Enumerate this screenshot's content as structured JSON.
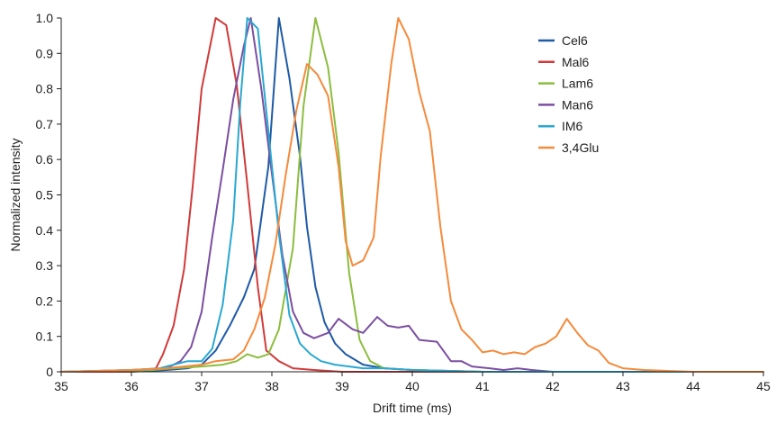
{
  "chart_data": {
    "type": "line",
    "title": "",
    "xlabel": "Drift time (ms)",
    "ylabel": "Normalized intensity",
    "xlim": [
      35,
      45
    ],
    "ylim": [
      0,
      1.0
    ],
    "x_ticks": [
      "35",
      "36",
      "37",
      "38",
      "39",
      "40",
      "41",
      "42",
      "43",
      "44",
      "45"
    ],
    "y_ticks": [
      "0",
      "0.1",
      "0.2",
      "0.3",
      "0.4",
      "0.5",
      "0.6",
      "0.7",
      "0.8",
      "0.9",
      "1.0"
    ],
    "grid": false,
    "legend_position": "top-right",
    "series": [
      {
        "name": "Cel6",
        "color": "#1f5aa6",
        "points": [
          [
            35,
            0
          ],
          [
            36,
            0
          ],
          [
            36.5,
            0.005
          ],
          [
            36.8,
            0.01
          ],
          [
            37,
            0.02
          ],
          [
            37.2,
            0.06
          ],
          [
            37.4,
            0.13
          ],
          [
            37.6,
            0.21
          ],
          [
            37.75,
            0.29
          ],
          [
            37.95,
            0.58
          ],
          [
            38.1,
            1.0
          ],
          [
            38.25,
            0.83
          ],
          [
            38.4,
            0.61
          ],
          [
            38.5,
            0.41
          ],
          [
            38.62,
            0.24
          ],
          [
            38.75,
            0.14
          ],
          [
            38.9,
            0.08
          ],
          [
            39.05,
            0.05
          ],
          [
            39.3,
            0.02
          ],
          [
            39.6,
            0.01
          ],
          [
            40,
            0.005
          ],
          [
            41,
            0
          ],
          [
            42,
            0
          ],
          [
            45,
            0
          ]
        ]
      },
      {
        "name": "Mal6",
        "color": "#d13a3a",
        "points": [
          [
            35,
            0
          ],
          [
            36,
            0
          ],
          [
            36.35,
            0.01
          ],
          [
            36.45,
            0.05
          ],
          [
            36.6,
            0.13
          ],
          [
            36.75,
            0.29
          ],
          [
            36.87,
            0.52
          ],
          [
            37,
            0.8
          ],
          [
            37.2,
            1.0
          ],
          [
            37.35,
            0.98
          ],
          [
            37.5,
            0.81
          ],
          [
            37.65,
            0.53
          ],
          [
            37.8,
            0.24
          ],
          [
            37.92,
            0.06
          ],
          [
            38.1,
            0.03
          ],
          [
            38.3,
            0.01
          ],
          [
            38.6,
            0.005
          ],
          [
            39,
            0
          ],
          [
            40,
            0
          ],
          [
            45,
            0
          ]
        ]
      },
      {
        "name": "Lam6",
        "color": "#8cbd3f",
        "points": [
          [
            35,
            0
          ],
          [
            36.3,
            0.005
          ],
          [
            36.6,
            0.01
          ],
          [
            37,
            0.015
          ],
          [
            37.3,
            0.02
          ],
          [
            37.5,
            0.03
          ],
          [
            37.65,
            0.05
          ],
          [
            37.8,
            0.04
          ],
          [
            37.95,
            0.05
          ],
          [
            38.1,
            0.12
          ],
          [
            38.3,
            0.35
          ],
          [
            38.45,
            0.75
          ],
          [
            38.62,
            1.0
          ],
          [
            38.8,
            0.86
          ],
          [
            38.95,
            0.62
          ],
          [
            39.1,
            0.28
          ],
          [
            39.25,
            0.09
          ],
          [
            39.4,
            0.03
          ],
          [
            39.6,
            0.01
          ],
          [
            40,
            0.005
          ],
          [
            41,
            0
          ],
          [
            45,
            0
          ]
        ]
      },
      {
        "name": "Man6",
        "color": "#7b4fa0",
        "points": [
          [
            35,
            0
          ],
          [
            36,
            0.005
          ],
          [
            36.5,
            0.01
          ],
          [
            36.7,
            0.03
          ],
          [
            36.85,
            0.07
          ],
          [
            37,
            0.17
          ],
          [
            37.15,
            0.38
          ],
          [
            37.3,
            0.57
          ],
          [
            37.45,
            0.77
          ],
          [
            37.6,
            0.92
          ],
          [
            37.7,
            1.0
          ],
          [
            37.85,
            0.8
          ],
          [
            38,
            0.56
          ],
          [
            38.15,
            0.33
          ],
          [
            38.3,
            0.17
          ],
          [
            38.45,
            0.11
          ],
          [
            38.6,
            0.095
          ],
          [
            38.8,
            0.11
          ],
          [
            38.95,
            0.15
          ],
          [
            39.15,
            0.12
          ],
          [
            39.3,
            0.11
          ],
          [
            39.5,
            0.155
          ],
          [
            39.65,
            0.13
          ],
          [
            39.8,
            0.125
          ],
          [
            39.95,
            0.13
          ],
          [
            40.1,
            0.09
          ],
          [
            40.35,
            0.085
          ],
          [
            40.55,
            0.03
          ],
          [
            40.7,
            0.03
          ],
          [
            40.85,
            0.015
          ],
          [
            41.1,
            0.01
          ],
          [
            41.3,
            0.005
          ],
          [
            41.5,
            0.01
          ],
          [
            41.7,
            0.005
          ],
          [
            42,
            0
          ],
          [
            45,
            0
          ]
        ]
      },
      {
        "name": "IM6",
        "color": "#29a8d1",
        "points": [
          [
            35,
            0
          ],
          [
            36,
            0.005
          ],
          [
            36.4,
            0.01
          ],
          [
            36.6,
            0.02
          ],
          [
            36.8,
            0.03
          ],
          [
            37,
            0.03
          ],
          [
            37.15,
            0.065
          ],
          [
            37.3,
            0.19
          ],
          [
            37.45,
            0.43
          ],
          [
            37.55,
            0.76
          ],
          [
            37.65,
            1.0
          ],
          [
            37.8,
            0.97
          ],
          [
            37.95,
            0.68
          ],
          [
            38.1,
            0.39
          ],
          [
            38.25,
            0.16
          ],
          [
            38.4,
            0.08
          ],
          [
            38.55,
            0.05
          ],
          [
            38.7,
            0.03
          ],
          [
            38.9,
            0.02
          ],
          [
            39.1,
            0.015
          ],
          [
            39.3,
            0.01
          ],
          [
            39.6,
            0.01
          ],
          [
            40,
            0.005
          ],
          [
            41,
            0
          ],
          [
            45,
            0
          ]
        ]
      },
      {
        "name": "3,4Glu",
        "color": "#f58a3c",
        "points": [
          [
            35,
            0
          ],
          [
            36,
            0.005
          ],
          [
            36.5,
            0.01
          ],
          [
            37,
            0.02
          ],
          [
            37.2,
            0.03
          ],
          [
            37.45,
            0.035
          ],
          [
            37.6,
            0.06
          ],
          [
            37.75,
            0.12
          ],
          [
            37.9,
            0.21
          ],
          [
            38.05,
            0.36
          ],
          [
            38.2,
            0.56
          ],
          [
            38.35,
            0.74
          ],
          [
            38.5,
            0.87
          ],
          [
            38.65,
            0.84
          ],
          [
            38.8,
            0.78
          ],
          [
            38.95,
            0.58
          ],
          [
            39.05,
            0.37
          ],
          [
            39.15,
            0.3
          ],
          [
            39.3,
            0.315
          ],
          [
            39.45,
            0.38
          ],
          [
            39.55,
            0.61
          ],
          [
            39.7,
            0.87
          ],
          [
            39.8,
            1.0
          ],
          [
            39.95,
            0.94
          ],
          [
            40.1,
            0.79
          ],
          [
            40.25,
            0.68
          ],
          [
            40.4,
            0.41
          ],
          [
            40.55,
            0.2
          ],
          [
            40.7,
            0.12
          ],
          [
            40.85,
            0.09
          ],
          [
            41,
            0.055
          ],
          [
            41.15,
            0.06
          ],
          [
            41.3,
            0.05
          ],
          [
            41.45,
            0.055
          ],
          [
            41.6,
            0.05
          ],
          [
            41.75,
            0.07
          ],
          [
            41.9,
            0.08
          ],
          [
            42.05,
            0.1
          ],
          [
            42.2,
            0.15
          ],
          [
            42.35,
            0.11
          ],
          [
            42.5,
            0.075
          ],
          [
            42.65,
            0.06
          ],
          [
            42.8,
            0.025
          ],
          [
            43,
            0.01
          ],
          [
            43.3,
            0.005
          ],
          [
            44,
            0
          ],
          [
            45,
            0
          ]
        ]
      }
    ]
  }
}
